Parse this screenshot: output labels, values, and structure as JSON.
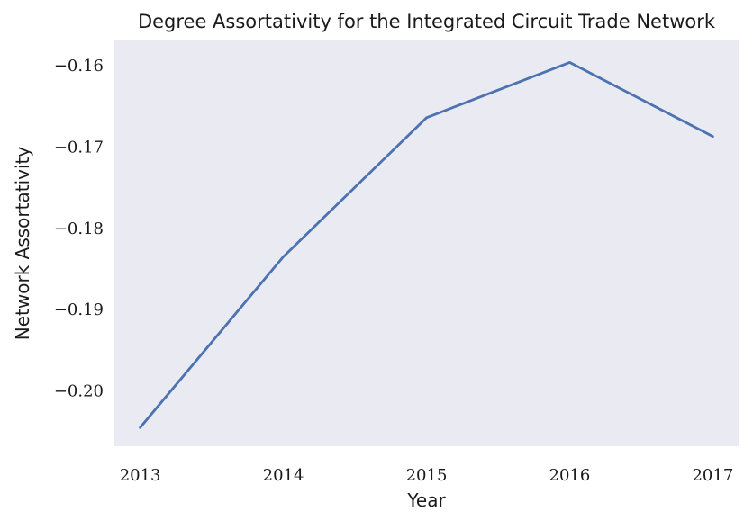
{
  "chart_data": {
    "type": "line",
    "title": "Degree Assortativity for the Integrated Circuit Trade Network",
    "xlabel": "Year",
    "ylabel": "Network Assortativity",
    "x": [
      2013,
      2014,
      2015,
      2016,
      2017
    ],
    "x_tick_labels": [
      "2013",
      "2014",
      "2015",
      "2016",
      "2017"
    ],
    "y_ticks": [
      -0.16,
      -0.17,
      -0.18,
      -0.19,
      -0.2
    ],
    "y_tick_labels": [
      "−0.16",
      "−0.17",
      "−0.18",
      "−0.19",
      "−0.20"
    ],
    "xlim": [
      2012.82,
      2017.18
    ],
    "ylim": [
      -0.2068,
      -0.1569
    ],
    "grid": false,
    "background_color": "#eaeaf2",
    "series": [
      {
        "color": "#4c72b0",
        "values": [
          -0.2045,
          -0.1835,
          -0.1664,
          -0.1596,
          -0.1687
        ]
      }
    ]
  }
}
